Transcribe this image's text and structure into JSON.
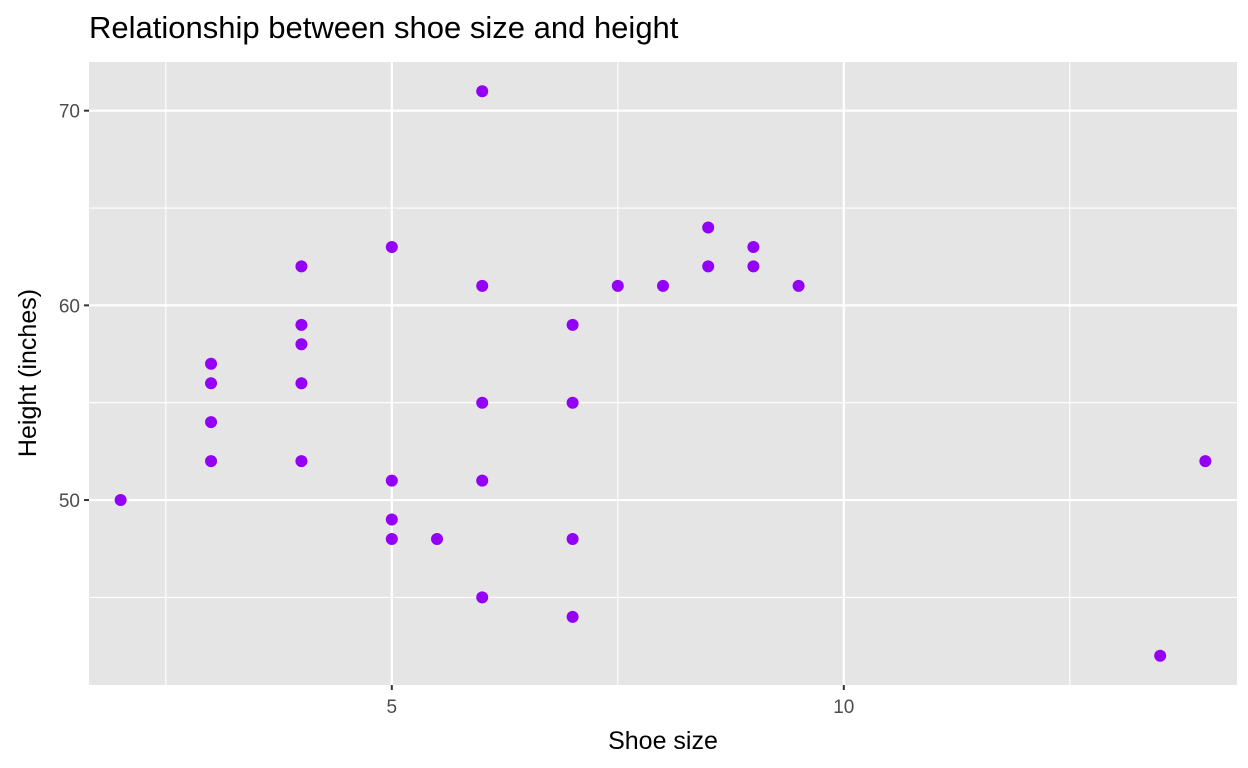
{
  "chart_data": {
    "type": "scatter",
    "title": "Relationship between shoe size and height",
    "xlabel": "Shoe size",
    "ylabel": "Height (inches)",
    "xlim": [
      1.65,
      14.35
    ],
    "ylim": [
      40.5,
      72.5
    ],
    "x_ticks": [
      5,
      10
    ],
    "x_minor_ticks": [
      2.5,
      7.5,
      12.5
    ],
    "y_ticks": [
      50,
      60,
      70
    ],
    "y_minor_ticks": [
      45,
      55,
      65
    ],
    "grid": true,
    "legend": "none",
    "background_color": "#e5e5e5",
    "grid_color": "#ffffff",
    "point_color": "#9400f5",
    "tick_label_color": "#4d4d4d",
    "points": [
      {
        "x": 2.0,
        "y": 50
      },
      {
        "x": 3.0,
        "y": 57
      },
      {
        "x": 3.0,
        "y": 56
      },
      {
        "x": 3.0,
        "y": 54
      },
      {
        "x": 3.0,
        "y": 52
      },
      {
        "x": 4.0,
        "y": 62
      },
      {
        "x": 4.0,
        "y": 59
      },
      {
        "x": 4.0,
        "y": 58
      },
      {
        "x": 4.0,
        "y": 56
      },
      {
        "x": 4.0,
        "y": 52
      },
      {
        "x": 5.0,
        "y": 63
      },
      {
        "x": 5.0,
        "y": 51
      },
      {
        "x": 5.0,
        "y": 49
      },
      {
        "x": 5.0,
        "y": 48
      },
      {
        "x": 5.5,
        "y": 48
      },
      {
        "x": 6.0,
        "y": 71
      },
      {
        "x": 6.0,
        "y": 61
      },
      {
        "x": 6.0,
        "y": 55
      },
      {
        "x": 6.0,
        "y": 51
      },
      {
        "x": 6.0,
        "y": 45
      },
      {
        "x": 7.0,
        "y": 59
      },
      {
        "x": 7.0,
        "y": 55
      },
      {
        "x": 7.0,
        "y": 48
      },
      {
        "x": 7.0,
        "y": 44
      },
      {
        "x": 7.5,
        "y": 61
      },
      {
        "x": 8.0,
        "y": 61
      },
      {
        "x": 8.5,
        "y": 64
      },
      {
        "x": 8.5,
        "y": 62
      },
      {
        "x": 9.0,
        "y": 63
      },
      {
        "x": 9.0,
        "y": 62
      },
      {
        "x": 9.5,
        "y": 61
      },
      {
        "x": 13.5,
        "y": 42
      },
      {
        "x": 14.0,
        "y": 52
      }
    ]
  }
}
